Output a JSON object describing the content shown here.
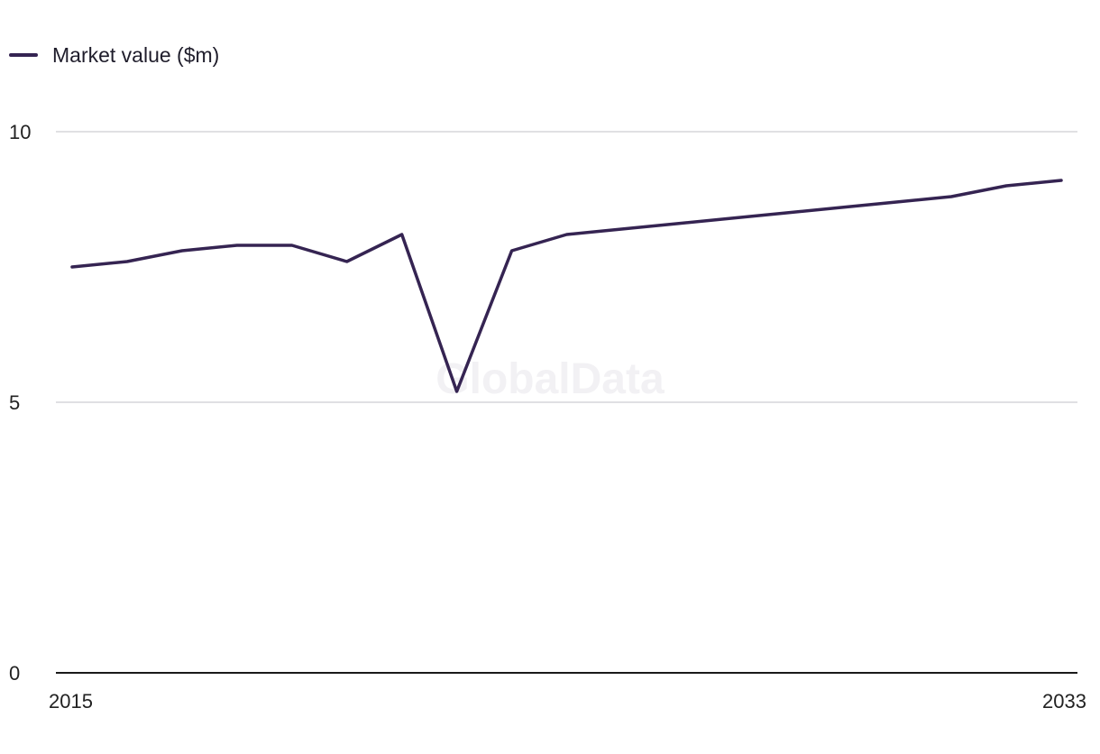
{
  "legend": {
    "label": "Market value ($m)"
  },
  "watermark": "GlobalData",
  "colors": {
    "series": "#352452",
    "grid": "#d6d6da",
    "axis": "#1a1a1a",
    "watermark": "#f2f1f4"
  },
  "chart_data": {
    "type": "line",
    "title": "",
    "xlabel": "",
    "ylabel": "",
    "x": [
      2015,
      2016,
      2017,
      2018,
      2019,
      2020,
      2021,
      2022,
      2023,
      2024,
      2025,
      2026,
      2027,
      2028,
      2029,
      2030,
      2031,
      2032,
      2033
    ],
    "series": [
      {
        "name": "Market value ($m)",
        "values": [
          7.5,
          7.6,
          7.8,
          7.9,
          7.9,
          7.6,
          8.1,
          5.2,
          7.8,
          8.1,
          8.2,
          8.3,
          8.4,
          8.5,
          8.6,
          8.7,
          8.8,
          9.0,
          9.1
        ]
      }
    ],
    "ylim": [
      0,
      10
    ],
    "yticks": [
      0,
      5,
      10
    ],
    "xtick_labels": [
      "2015",
      "2033"
    ],
    "grid": true,
    "legend_position": "top-left"
  }
}
